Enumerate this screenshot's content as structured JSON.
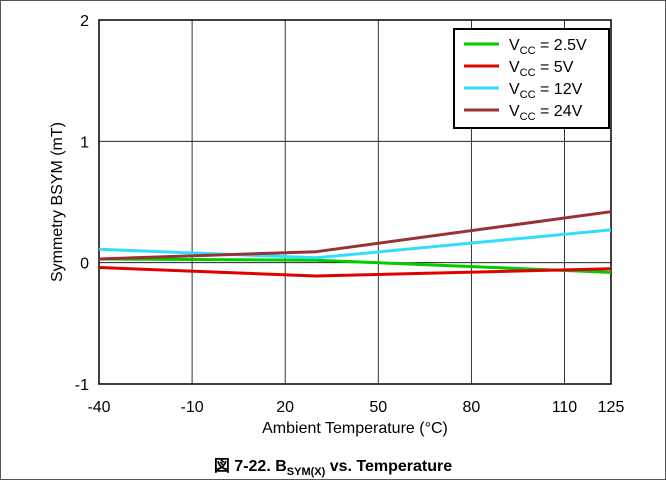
{
  "chart_data": {
    "type": "line",
    "title": "",
    "xlabel": "Ambient Temperature (°C)",
    "ylabel": "Symmetry BSYM (mT)",
    "xlim": [
      -40,
      125
    ],
    "ylim": [
      -1,
      2
    ],
    "x_ticks": [
      -40,
      -10,
      20,
      50,
      80,
      110,
      125
    ],
    "x_tick_labels": [
      "-40",
      "-10",
      "20",
      "50",
      "80",
      "110",
      "125"
    ],
    "y_ticks": [
      -1,
      0,
      1,
      2
    ],
    "y_tick_labels": [
      "-1",
      "0",
      "1",
      "2"
    ],
    "grid": true,
    "legend_position": "top-right",
    "series": [
      {
        "name_main": "V",
        "name_sub": "CC",
        "name_rest": " = 2.5V",
        "color": "#00cc00",
        "x": [
          -40,
          30,
          125
        ],
        "y": [
          0.03,
          0.02,
          -0.08
        ]
      },
      {
        "name_main": "V",
        "name_sub": "CC",
        "name_rest": " = 5V",
        "color": "#e00000",
        "x": [
          -40,
          30,
          125
        ],
        "y": [
          -0.04,
          -0.11,
          -0.05
        ]
      },
      {
        "name_main": "V",
        "name_sub": "CC",
        "name_rest": " = 12V",
        "color": "#33ddff",
        "x": [
          -40,
          30,
          125
        ],
        "y": [
          0.11,
          0.04,
          0.27
        ]
      },
      {
        "name_main": "V",
        "name_sub": "CC",
        "name_rest": " = 24V",
        "color": "#993333",
        "x": [
          -40,
          30,
          125
        ],
        "y": [
          0.03,
          0.09,
          0.42
        ]
      }
    ]
  },
  "caption": {
    "prefix": "図 7-22. B",
    "sub": "SYM(X)",
    "suffix": " vs. Temperature"
  }
}
